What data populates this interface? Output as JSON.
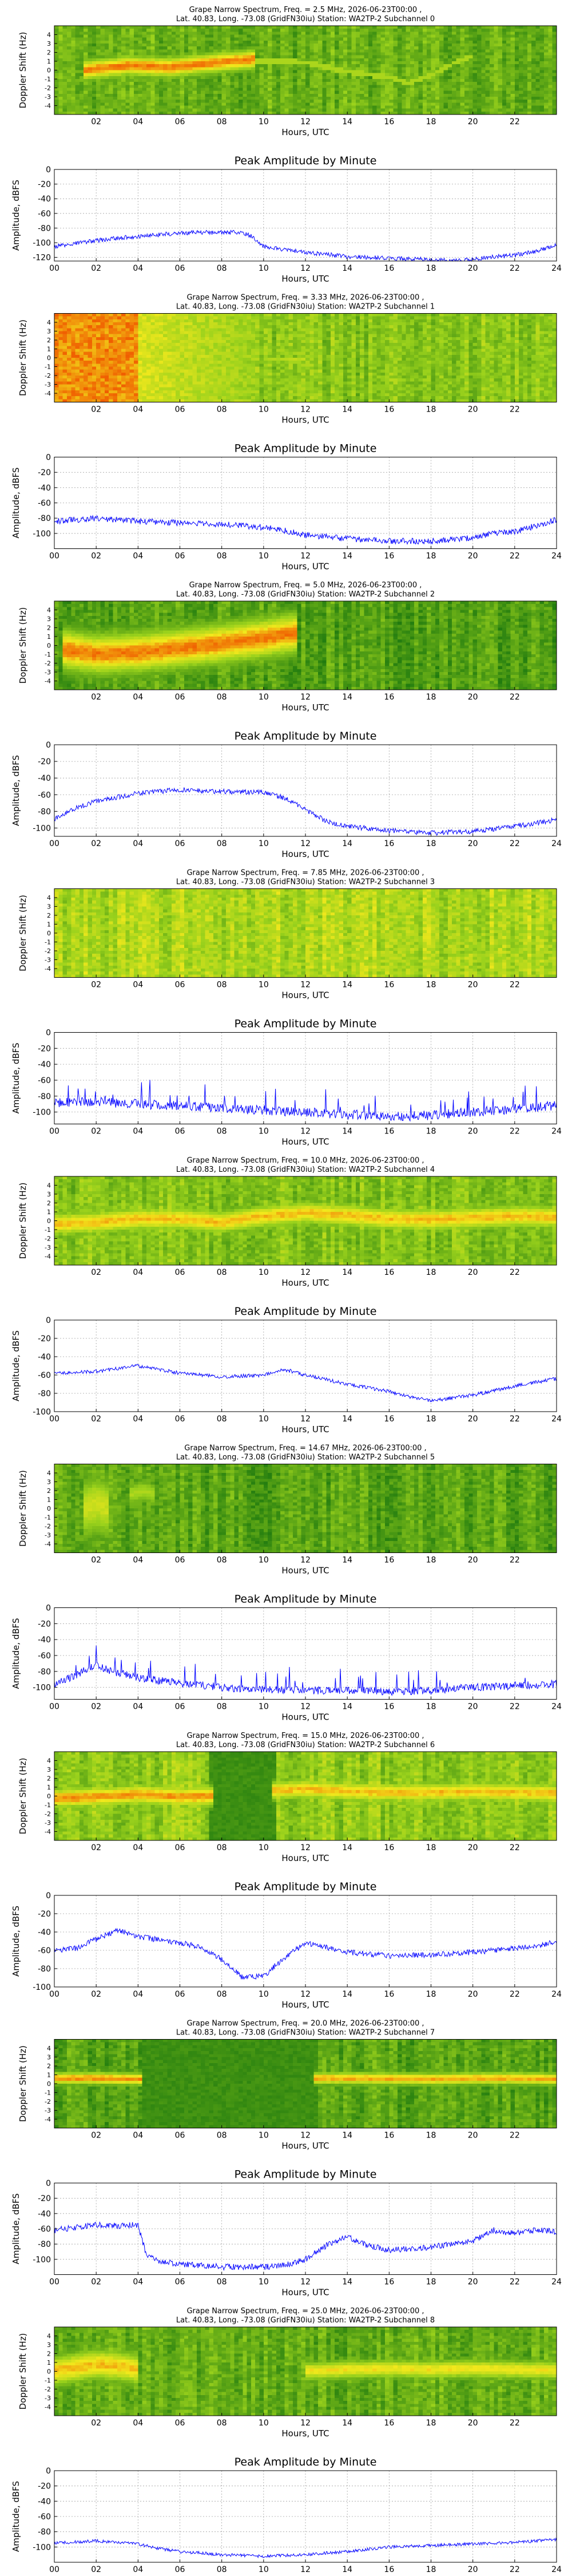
{
  "figure": {
    "spectrogram_xlabel": "Hours, UTC",
    "spectrogram_ylabel": "Doppler Shift (Hz)",
    "spectrogram_xticks": [
      "02",
      "04",
      "06",
      "08",
      "10",
      "12",
      "14",
      "16",
      "18",
      "20",
      "22"
    ],
    "spectrogram_yticks": [
      "-4",
      "-3",
      "-2",
      "-1",
      "0",
      "1",
      "2",
      "3",
      "4"
    ],
    "amplitude_title": "Peak Amplitude by Minute",
    "amplitude_xlabel": "Hours, UTC",
    "amplitude_ylabel": "Amplitude, dBFS",
    "amplitude_xticks": [
      "00",
      "02",
      "04",
      "06",
      "08",
      "10",
      "12",
      "14",
      "16",
      "18",
      "20",
      "22",
      "24"
    ],
    "colors": {
      "line": "#0000ff",
      "grid": "#a0a0a0",
      "spec_low": "#1f7a0f",
      "spec_mid": "#9bd21c",
      "spec_high": "#f2e81c",
      "spec_peak": "#f05a00"
    }
  },
  "chart_data": [
    {
      "type": "heatmap",
      "subchannel": 0,
      "title_line1": "Grape Narrow Spectrum, Freq. = 2.5 MHz, 2026-06-23T00:00 ,",
      "title_line2": "Lat.  40.83, Long. -73.08 (GridFN30iu) Station: WA2TP-2 Subchannel 0",
      "xlabel": "Hours, UTC",
      "ylabel": "Doppler Shift (Hz)",
      "xlim": [
        0,
        24
      ],
      "ylim": [
        -5,
        5
      ],
      "background": 0.3,
      "bands": [
        {
          "x": [
            1.5,
            3.5,
            5.5,
            7.5,
            9.5
          ],
          "y": [
            0.0,
            0.5,
            0.3,
            0.8,
            1.2
          ],
          "intensity": 0.95,
          "width": 1.3
        }
      ],
      "trace": {
        "x": [
          9.5,
          12,
          14,
          16,
          17,
          18,
          19,
          20
        ],
        "y": [
          1.0,
          0.9,
          -0.2,
          -0.8,
          -1.5,
          -0.6,
          0.7,
          1.5
        ],
        "intensity": 0.55
      }
    },
    {
      "type": "line",
      "subchannel": 0,
      "title": "Peak Amplitude by Minute",
      "xlabel": "Hours, UTC",
      "ylabel": "Amplitude, dBFS",
      "xlim": [
        0,
        24
      ],
      "ylim": [
        -125,
        0
      ],
      "yticks": [
        0,
        -20,
        -40,
        -60,
        -80,
        -100,
        -120
      ],
      "series": [
        {
          "x": [
            0,
            2,
            4,
            6,
            7,
            8,
            9,
            9.5,
            10,
            11,
            12,
            14,
            16,
            18,
            19,
            20,
            22,
            23,
            24
          ],
          "y": [
            -105,
            -97,
            -91,
            -87,
            -86,
            -86,
            -86,
            -92,
            -105,
            -110,
            -113,
            -119,
            -121,
            -123,
            -125,
            -122,
            -117,
            -112,
            -103
          ],
          "noise": 3
        }
      ]
    },
    {
      "type": "heatmap",
      "subchannel": 1,
      "title_line1": "Grape Narrow Spectrum, Freq. = 3.33 MHz, 2026-06-23T00:00 ,",
      "title_line2": "Lat.  40.83, Long. -73.08 (GridFN30iu) Station: WA2TP-2 Subchannel 1",
      "xlabel": "Hours, UTC",
      "ylabel": "Doppler Shift (Hz)",
      "xlim": [
        0,
        24
      ],
      "ylim": [
        -5,
        5
      ],
      "background": 0.42,
      "broadband": {
        "x_range": [
          0,
          4
        ],
        "intensity": 0.92,
        "fade_to": 9.5,
        "fade_intensity": 0.7
      },
      "bands": [
        {
          "x": [
            10,
            11,
            12
          ],
          "y": [
            -0.3,
            -0.2,
            -0.2
          ],
          "intensity": 0.6,
          "width": 0.4
        }
      ]
    },
    {
      "type": "line",
      "subchannel": 1,
      "title": "Peak Amplitude by Minute",
      "xlabel": "Hours, UTC",
      "ylabel": "Amplitude, dBFS",
      "xlim": [
        0,
        24
      ],
      "ylim": [
        -120,
        0
      ],
      "yticks": [
        0,
        -20,
        -40,
        -60,
        -80,
        -100
      ],
      "series": [
        {
          "x": [
            0,
            2,
            4,
            6,
            8,
            10,
            11,
            12,
            14,
            16,
            18,
            20,
            21,
            22,
            23,
            24
          ],
          "y": [
            -84,
            -80,
            -84,
            -86,
            -88,
            -92,
            -96,
            -102,
            -107,
            -110,
            -110,
            -106,
            -100,
            -98,
            -90,
            -82
          ],
          "noise": 4
        }
      ]
    },
    {
      "type": "heatmap",
      "subchannel": 2,
      "title_line1": "Grape Narrow Spectrum, Freq. = 5.0 MHz, 2026-06-23T00:00 ,",
      "title_line2": "Lat.  40.83, Long. -73.08 (GridFN30iu) Station: WA2TP-2 Subchannel 2",
      "xlabel": "Hours, UTC",
      "ylabel": "Doppler Shift (Hz)",
      "xlim": [
        0,
        24
      ],
      "ylim": [
        -5,
        5
      ],
      "background": 0.22,
      "bands": [
        {
          "x": [
            0.5,
            2,
            4,
            6,
            8,
            10,
            11.5
          ],
          "y": [
            -0.5,
            -1.0,
            -0.8,
            -0.3,
            0.2,
            0.8,
            1.4
          ],
          "intensity": 0.95,
          "width": 2.6
        }
      ]
    },
    {
      "type": "line",
      "subchannel": 2,
      "title": "Peak Amplitude by Minute",
      "xlabel": "Hours, UTC",
      "ylabel": "Amplitude, dBFS",
      "xlim": [
        0,
        24
      ],
      "ylim": [
        -110,
        0
      ],
      "yticks": [
        0,
        -20,
        -40,
        -60,
        -80,
        -100
      ],
      "series": [
        {
          "x": [
            0,
            1,
            2,
            4,
            6,
            8,
            10,
            11,
            12,
            13,
            14,
            16,
            18,
            20,
            22,
            23,
            24
          ],
          "y": [
            -90,
            -76,
            -68,
            -58,
            -54,
            -56,
            -57,
            -64,
            -78,
            -92,
            -98,
            -103,
            -106,
            -104,
            -98,
            -94,
            -90
          ],
          "noise": 3
        }
      ]
    },
    {
      "type": "heatmap",
      "subchannel": 3,
      "title_line1": "Grape Narrow Spectrum, Freq. = 7.85 MHz, 2026-06-23T00:00 ,",
      "title_line2": "Lat.  40.83, Long. -73.08 (GridFN30iu) Station: WA2TP-2 Subchannel 3",
      "xlabel": "Hours, UTC",
      "ylabel": "Doppler Shift (Hz)",
      "xlim": [
        0,
        24
      ],
      "ylim": [
        -5,
        5
      ],
      "background": 0.55,
      "bands": []
    },
    {
      "type": "line",
      "subchannel": 3,
      "title": "Peak Amplitude by Minute",
      "xlabel": "Hours, UTC",
      "ylabel": "Amplitude, dBFS",
      "xlim": [
        0,
        24
      ],
      "ylim": [
        -115,
        0
      ],
      "yticks": [
        0,
        -20,
        -40,
        -60,
        -80,
        -100
      ],
      "series": [
        {
          "x": [
            0,
            2,
            4,
            6,
            8,
            10,
            12,
            14,
            16,
            18,
            20,
            22,
            24
          ],
          "y": [
            -88,
            -87,
            -90,
            -92,
            -95,
            -98,
            -100,
            -103,
            -106,
            -104,
            -100,
            -96,
            -92
          ],
          "noise": 6,
          "spikes": 0.07
        }
      ]
    },
    {
      "type": "heatmap",
      "subchannel": 4,
      "title_line1": "Grape Narrow Spectrum, Freq. = 10.0 MHz, 2026-06-23T00:00 ,",
      "title_line2": "Lat.  40.83, Long. -73.08 (GridFN30iu) Station: WA2TP-2 Subchannel 4",
      "xlabel": "Hours, UTC",
      "ylabel": "Doppler Shift (Hz)",
      "xlim": [
        0,
        24
      ],
      "ylim": [
        -5,
        5
      ],
      "background": 0.4,
      "bands": [
        {
          "x": [
            0,
            2,
            4,
            6,
            8,
            10,
            12,
            14,
            16,
            18,
            20,
            22,
            24
          ],
          "y": [
            -0.4,
            -0.2,
            0.2,
            0.2,
            -0.2,
            0.5,
            0.9,
            0.6,
            0.2,
            0.1,
            0.3,
            0.5,
            0.4
          ],
          "intensity": 0.85,
          "width": 1.5
        }
      ]
    },
    {
      "type": "line",
      "subchannel": 4,
      "title": "Peak Amplitude by Minute",
      "xlabel": "Hours, UTC",
      "ylabel": "Amplitude, dBFS",
      "xlim": [
        0,
        24
      ],
      "ylim": [
        -100,
        0
      ],
      "yticks": [
        0,
        -20,
        -40,
        -60,
        -80,
        -100
      ],
      "series": [
        {
          "x": [
            0,
            2,
            4,
            6,
            8,
            10,
            11,
            12,
            14,
            16,
            17,
            18,
            20,
            22,
            24
          ],
          "y": [
            -58,
            -56,
            -50,
            -58,
            -62,
            -60,
            -54,
            -60,
            -70,
            -78,
            -84,
            -88,
            -82,
            -72,
            -64
          ],
          "noise": 2
        }
      ]
    },
    {
      "type": "heatmap",
      "subchannel": 5,
      "title_line1": "Grape Narrow Spectrum, Freq. = 14.67 MHz, 2026-06-23T00:00 ,",
      "title_line2": "Lat.  40.83, Long. -73.08 (GridFN30iu) Station: WA2TP-2 Subchannel 5",
      "xlabel": "Hours, UTC",
      "ylabel": "Doppler Shift (Hz)",
      "xlim": [
        0,
        24
      ],
      "ylim": [
        -5,
        5
      ],
      "background": 0.24,
      "bands": [
        {
          "x": [
            1.5,
            2,
            2.5
          ],
          "y": [
            0.0,
            0.5,
            0.0
          ],
          "intensity": 0.65,
          "width": 4.0
        },
        {
          "x": [
            3.6,
            4.2,
            4.8
          ],
          "y": [
            1.5,
            2.0,
            1.5
          ],
          "intensity": 0.55,
          "width": 1.5
        }
      ]
    },
    {
      "type": "line",
      "subchannel": 5,
      "title": "Peak Amplitude by Minute",
      "xlabel": "Hours, UTC",
      "ylabel": "Amplitude, dBFS",
      "xlim": [
        0,
        24
      ],
      "ylim": [
        -115,
        0
      ],
      "yticks": [
        0,
        -20,
        -40,
        -60,
        -80,
        -100
      ],
      "series": [
        {
          "x": [
            0,
            1,
            2,
            3,
            4,
            6,
            8,
            10,
            12,
            14,
            16,
            18,
            20,
            22,
            24
          ],
          "y": [
            -95,
            -85,
            -72,
            -82,
            -88,
            -95,
            -100,
            -103,
            -104,
            -104,
            -105,
            -104,
            -100,
            -98,
            -96
          ],
          "noise": 5,
          "spikes": 0.04
        }
      ]
    },
    {
      "type": "heatmap",
      "subchannel": 6,
      "title_line1": "Grape Narrow Spectrum, Freq. = 15.0 MHz, 2026-06-23T00:00 ,",
      "title_line2": "Lat.  40.83, Long. -73.08 (GridFN30iu) Station: WA2TP-2 Subchannel 6",
      "xlabel": "Hours, UTC",
      "ylabel": "Doppler Shift (Hz)",
      "xlim": [
        0,
        24
      ],
      "ylim": [
        -5,
        5
      ],
      "background": 0.45,
      "dark_ranges": [
        [
          7.5,
          10.5
        ]
      ],
      "bands": [
        {
          "x": [
            0,
            2,
            4,
            6,
            7.5
          ],
          "y": [
            -0.3,
            -0.1,
            0.2,
            -0.1,
            0.0
          ],
          "intensity": 0.92,
          "width": 1.3
        },
        {
          "x": [
            10.5,
            12,
            14,
            16,
            18,
            20,
            22,
            24
          ],
          "y": [
            0.6,
            0.8,
            0.5,
            0.4,
            0.4,
            0.5,
            0.4,
            0.3
          ],
          "intensity": 0.85,
          "width": 1.3
        }
      ]
    },
    {
      "type": "line",
      "subchannel": 6,
      "title": "Peak Amplitude by Minute",
      "xlabel": "Hours, UTC",
      "ylabel": "Amplitude, dBFS",
      "xlim": [
        0,
        24
      ],
      "ylim": [
        -100,
        0
      ],
      "yticks": [
        0,
        -20,
        -40,
        -60,
        -80,
        -100
      ],
      "series": [
        {
          "x": [
            0,
            1,
            2,
            3,
            4,
            6,
            7,
            8,
            9,
            10,
            11,
            12,
            14,
            16,
            18,
            20,
            22,
            23,
            24
          ],
          "y": [
            -60,
            -58,
            -48,
            -38,
            -45,
            -52,
            -56,
            -70,
            -90,
            -88,
            -68,
            -52,
            -62,
            -66,
            -65,
            -62,
            -58,
            -56,
            -50
          ],
          "noise": 3
        }
      ]
    },
    {
      "type": "heatmap",
      "subchannel": 7,
      "title_line1": "Grape Narrow Spectrum, Freq. = 20.0 MHz, 2026-06-23T00:00 ,",
      "title_line2": "Lat.  40.83, Long. -73.08 (GridFN30iu) Station: WA2TP-2 Subchannel 7",
      "xlabel": "Hours, UTC",
      "ylabel": "Doppler Shift (Hz)",
      "xlim": [
        0,
        24
      ],
      "ylim": [
        -5,
        5
      ],
      "background": 0.24,
      "dark_ranges": [
        [
          4.2,
          12.5
        ]
      ],
      "bands": [
        {
          "x": [
            0,
            2,
            4.2
          ],
          "y": [
            0.6,
            0.6,
            0.5
          ],
          "intensity": 0.92,
          "width": 0.8
        },
        {
          "x": [
            12.5,
            15,
            18,
            20,
            22,
            24
          ],
          "y": [
            0.6,
            0.6,
            0.5,
            0.6,
            0.6,
            0.5
          ],
          "intensity": 0.88,
          "width": 0.8
        }
      ]
    },
    {
      "type": "line",
      "subchannel": 7,
      "title": "Peak Amplitude by Minute",
      "xlabel": "Hours, UTC",
      "ylabel": "Amplitude, dBFS",
      "xlim": [
        0,
        24
      ],
      "ylim": [
        -120,
        0
      ],
      "yticks": [
        0,
        -20,
        -40,
        -60,
        -80,
        -100
      ],
      "series": [
        {
          "x": [
            0,
            1,
            2,
            3,
            4,
            4.4,
            5,
            6,
            8,
            10,
            11,
            12,
            13,
            14,
            15,
            16,
            18,
            20,
            21,
            22,
            23,
            24
          ],
          "y": [
            -62,
            -58,
            -55,
            -56,
            -55,
            -95,
            -102,
            -106,
            -110,
            -110,
            -108,
            -100,
            -82,
            -70,
            -82,
            -88,
            -84,
            -76,
            -62,
            -66,
            -62,
            -64
          ],
          "noise": 4
        }
      ]
    },
    {
      "type": "heatmap",
      "subchannel": 8,
      "title_line1": "Grape Narrow Spectrum, Freq. = 25.0 MHz, 2026-06-23T00:00 ,",
      "title_line2": "Lat.  40.83, Long. -73.08 (GridFN30iu) Station: WA2TP-2 Subchannel 8",
      "xlabel": "Hours, UTC",
      "ylabel": "Doppler Shift (Hz)",
      "xlim": [
        0,
        24
      ],
      "ylim": [
        -5,
        5
      ],
      "background": 0.28,
      "bands": [
        {
          "x": [
            0,
            1,
            2,
            3,
            4
          ],
          "y": [
            0.0,
            0.4,
            0.8,
            0.6,
            0.2
          ],
          "intensity": 0.85,
          "width": 2.0
        },
        {
          "x": [
            12,
            14,
            16,
            18,
            20,
            22,
            24
          ],
          "y": [
            0.0,
            0.2,
            0.3,
            0.2,
            0.3,
            0.2,
            0.1
          ],
          "intensity": 0.78,
          "width": 1.2
        }
      ]
    },
    {
      "type": "line",
      "subchannel": 8,
      "title": "Peak Amplitude by Minute",
      "xlabel": "Hours, UTC",
      "ylabel": "Amplitude, dBFS",
      "xlim": [
        0,
        24
      ],
      "ylim": [
        -120,
        0
      ],
      "yticks": [
        0,
        -20,
        -40,
        -60,
        -80,
        -100
      ],
      "series": [
        {
          "x": [
            0,
            2,
            4,
            5,
            6,
            8,
            10,
            12,
            14,
            16,
            18,
            20,
            22,
            24
          ],
          "y": [
            -95,
            -92,
            -96,
            -102,
            -106,
            -110,
            -112,
            -110,
            -106,
            -100,
            -98,
            -96,
            -94,
            -90
          ],
          "noise": 2
        }
      ]
    }
  ]
}
